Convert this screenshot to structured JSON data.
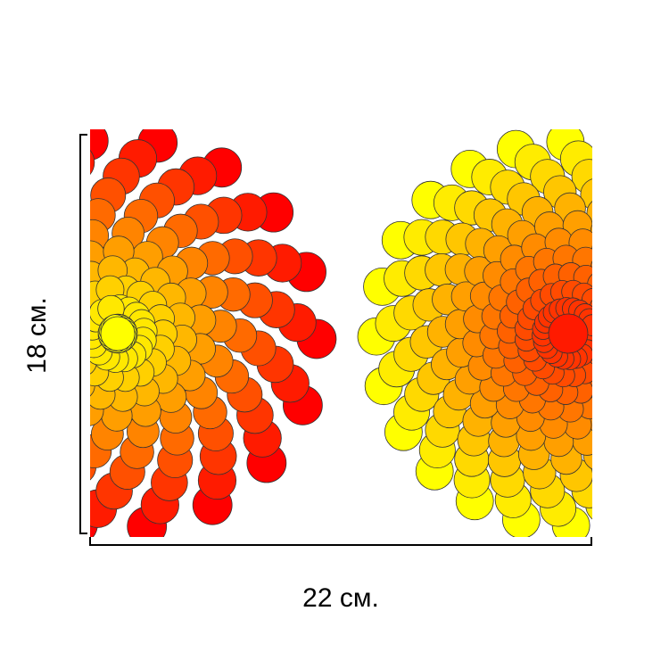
{
  "dimensions": {
    "width_label": "22 см.",
    "height_label": "18 см."
  },
  "artwork": {
    "left_motif": "circle-spiral-sunburst-left",
    "right_motif": "circle-spiral-sunburst-right",
    "palette": {
      "inner_left": "#ffff00",
      "outer_left": "#ff0000",
      "inner_right": "#ff1a00",
      "outer_right": "#ffff00",
      "outline": "#333333"
    }
  }
}
